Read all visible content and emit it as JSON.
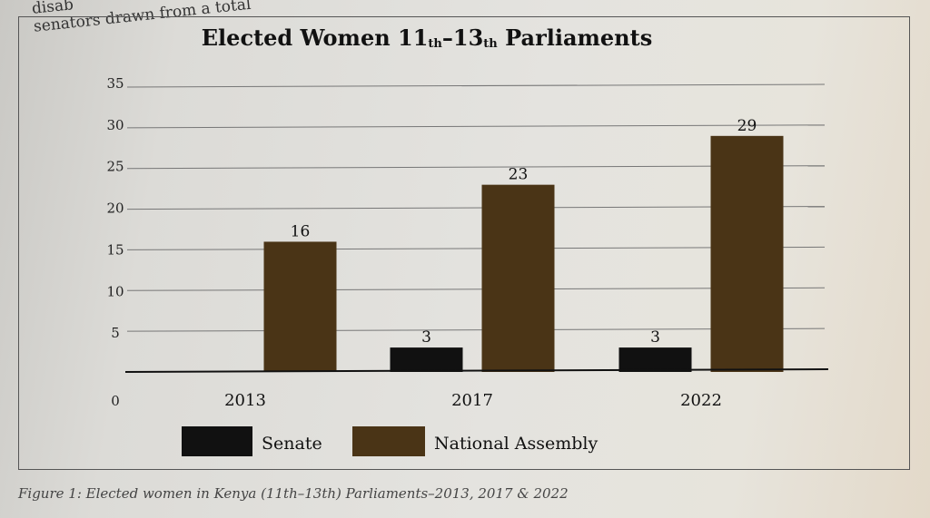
{
  "page": {
    "header_fragment_1": "disab",
    "header_fragment_2": "senators drawn from a total",
    "caption": "Figure 1: Elected women in Kenya (11th–13th) Parliaments–2013, 2017 & 2022"
  },
  "chart_data": {
    "type": "bar",
    "title": "Elected Women 11th–13th Parliaments",
    "categories": [
      "2013",
      "2017",
      "2022"
    ],
    "series": [
      {
        "name": "Senate",
        "values": [
          null,
          3,
          3
        ],
        "color": "#111111"
      },
      {
        "name": "National Assembly",
        "values": [
          16,
          23,
          29
        ],
        "color": "#4a3416"
      }
    ],
    "y_ticks": [
      "0",
      "5",
      "10",
      "15",
      "20",
      "25",
      "30",
      "35"
    ],
    "ylim": [
      0,
      35
    ],
    "grid": true,
    "legend_position": "bottom"
  }
}
